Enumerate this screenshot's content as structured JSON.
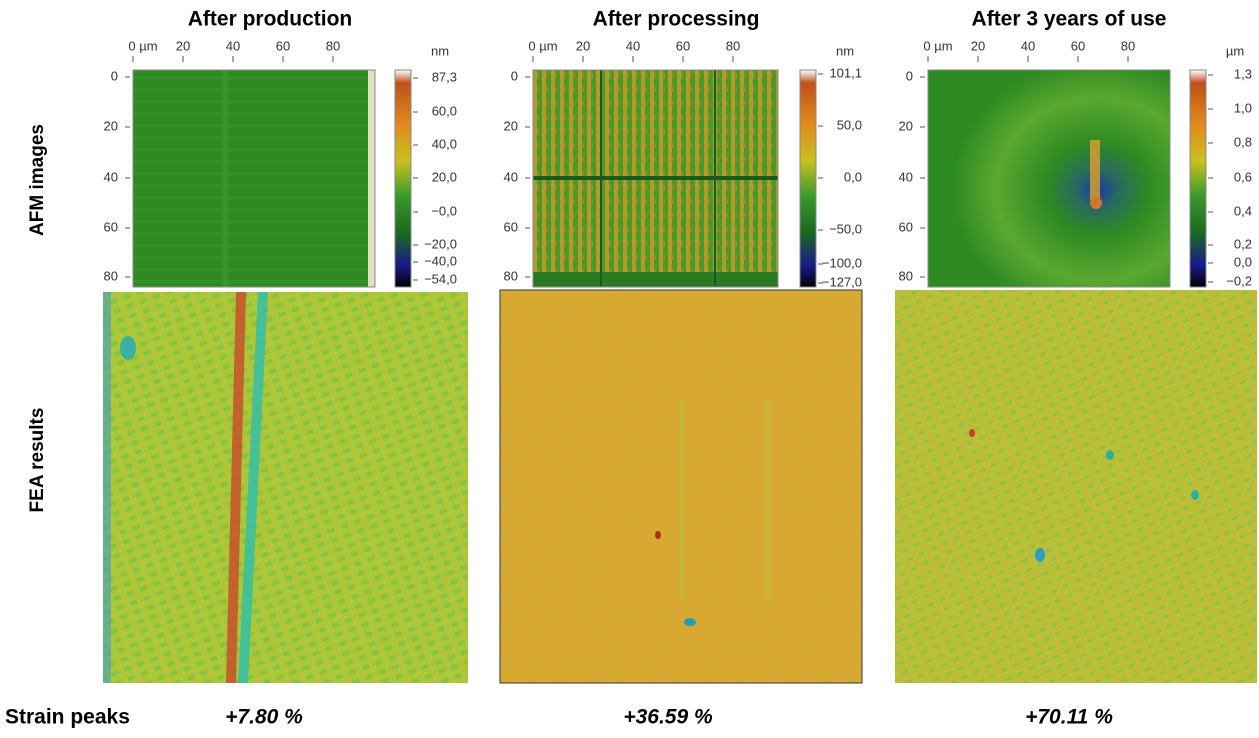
{
  "row_labels": [
    "AFM images",
    "FEA results"
  ],
  "strain_label": "Strain peaks",
  "panels": [
    {
      "title": "After production",
      "x_ticks": [
        "0 µm",
        "20",
        "40",
        "60",
        "80"
      ],
      "y_ticks": [
        "0",
        "20",
        "40",
        "60",
        "80"
      ],
      "colorbar": {
        "unit": "nm",
        "ticks": [
          "87,3",
          "60,0",
          "40,0",
          "20,0",
          "−0,0",
          "−20,0",
          "−40,0",
          "−54,0"
        ]
      },
      "strain_peak": "+7.80 %"
    },
    {
      "title": "After processing",
      "x_ticks": [
        "0 µm",
        "20",
        "40",
        "60",
        "80"
      ],
      "y_ticks": [
        "0",
        "20",
        "40",
        "60",
        "80"
      ],
      "colorbar": {
        "unit": "nm",
        "ticks": [
          "101,1",
          "50,0",
          "0,0",
          "−50,0",
          "−100,0",
          "−127,0"
        ]
      },
      "strain_peak": "+36.59 %"
    },
    {
      "title": "After 3 years of use",
      "x_ticks": [
        "0 µm",
        "20",
        "40",
        "60",
        "80"
      ],
      "y_ticks": [
        "0",
        "20",
        "40",
        "60",
        "80"
      ],
      "colorbar": {
        "unit": "µm",
        "ticks": [
          "1,3",
          "1,0",
          "0,8",
          "0,6",
          "0,4",
          "0,2",
          "0,0",
          "−0,2"
        ]
      },
      "strain_peak": "+70.11 %"
    }
  ]
}
